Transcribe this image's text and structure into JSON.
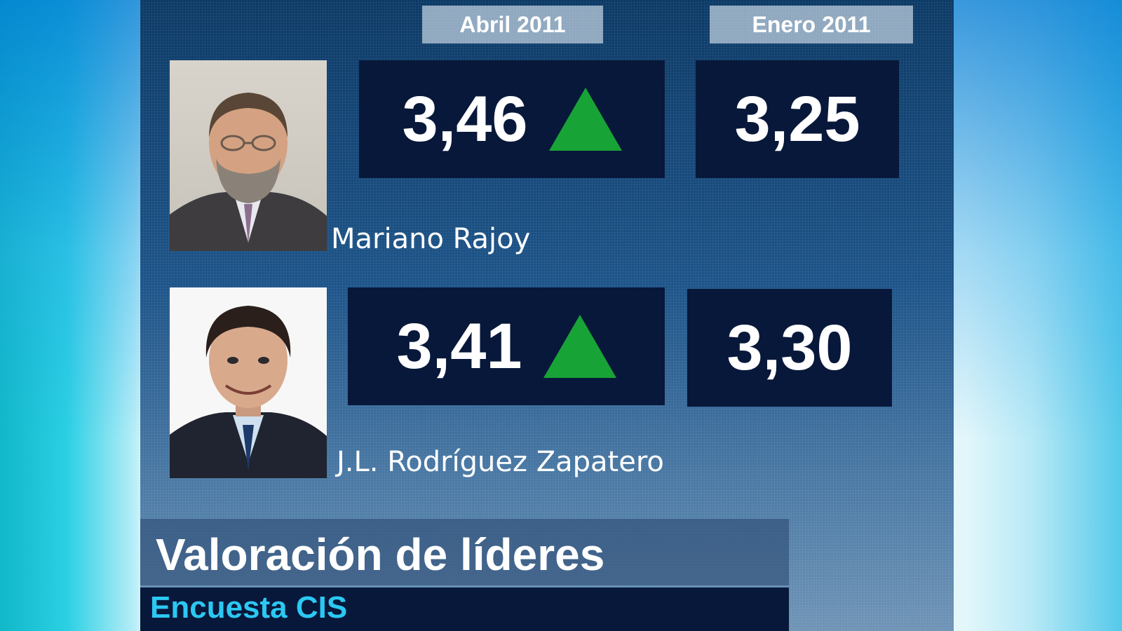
{
  "columns": {
    "current": "Abril 2011",
    "previous": "Enero 2011"
  },
  "leaders": [
    {
      "name": "Mariano Rajoy",
      "current_score": "3,46",
      "previous_score": "3,25",
      "trend": "up",
      "trend_icon": "green-up-triangle"
    },
    {
      "name": "J.L. Rodríguez Zapatero",
      "current_score": "3,41",
      "previous_score": "3,30",
      "trend": "up",
      "trend_icon": "green-up-triangle"
    }
  ],
  "title": "Valoración de líderes",
  "subtitle": "Encuesta CIS",
  "colors": {
    "score_box": "#08183a",
    "trend_up": "#18a336",
    "subtitle": "#2bc8f2"
  }
}
